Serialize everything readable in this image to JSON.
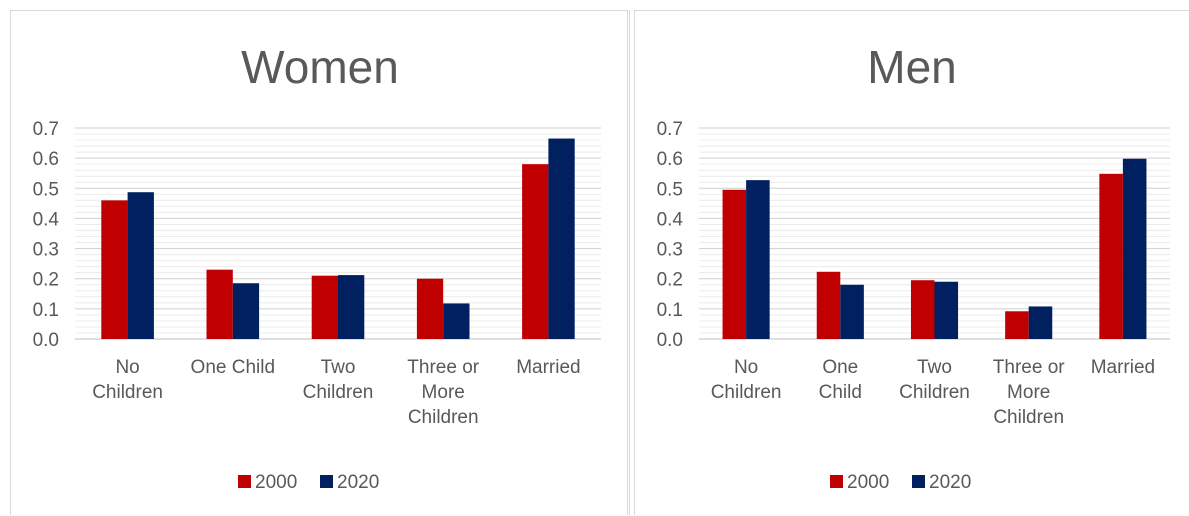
{
  "colors": {
    "s2000": "#c00000",
    "s2020": "#002060",
    "text": "#595959",
    "grid": "#d9d9d9"
  },
  "chart_data": [
    {
      "type": "bar",
      "title": "Women",
      "categories": [
        [
          "No",
          "Children"
        ],
        [
          "One Child"
        ],
        [
          "Two",
          "Children"
        ],
        [
          "Three or",
          "More",
          "Children"
        ],
        [
          "Married"
        ]
      ],
      "series": [
        {
          "name": "2000",
          "values": [
            0.46,
            0.23,
            0.21,
            0.2,
            0.58
          ]
        },
        {
          "name": "2020",
          "values": [
            0.487,
            0.185,
            0.212,
            0.118,
            0.665
          ]
        }
      ],
      "ylim": [
        0,
        0.7
      ],
      "yticks": [
        "0.0",
        "0.1",
        "0.2",
        "0.3",
        "0.4",
        "0.5",
        "0.6",
        "0.7"
      ],
      "legend": "bottom",
      "grid": true
    },
    {
      "type": "bar",
      "title": "Men",
      "categories": [
        [
          "No",
          "Children"
        ],
        [
          "One",
          "Child"
        ],
        [
          "Two",
          "Children"
        ],
        [
          "Three or",
          "More",
          "Children"
        ],
        [
          "Married"
        ]
      ],
      "series": [
        {
          "name": "2000",
          "values": [
            0.495,
            0.223,
            0.195,
            0.092,
            0.548
          ]
        },
        {
          "name": "2020",
          "values": [
            0.527,
            0.18,
            0.19,
            0.108,
            0.598
          ]
        }
      ],
      "ylim": [
        0,
        0.7
      ],
      "yticks": [
        "0.0",
        "0.1",
        "0.2",
        "0.3",
        "0.4",
        "0.5",
        "0.6",
        "0.7"
      ],
      "legend": "bottom",
      "grid": true
    }
  ]
}
